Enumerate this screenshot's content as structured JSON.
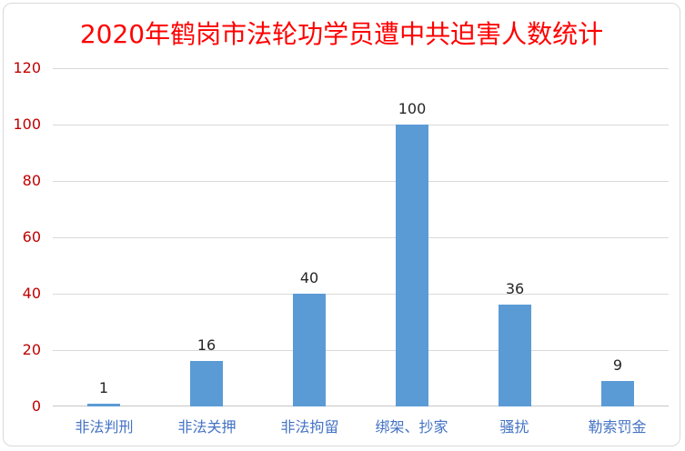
{
  "chart_data": {
    "type": "bar",
    "title": "2020年鹤岗市法轮功学员遭中共迫害人数统计",
    "categories": [
      "非法判刑",
      "非法关押",
      "非法拘留",
      "绑架、抄家",
      "骚扰",
      "勒索罚金"
    ],
    "values": [
      1,
      16,
      40,
      100,
      36,
      9
    ],
    "ylim": [
      0,
      120
    ],
    "yticks": [
      0,
      20,
      40,
      60,
      80,
      100,
      120
    ],
    "grid": true,
    "legend": "none",
    "colors": {
      "bar": "#5B9BD5",
      "title": "#FF0000",
      "ytick_labels": "#C00000",
      "category_labels": "#4472C4",
      "value_labels": "#262626",
      "gridline": "#D9D9D9",
      "axis_line": "#C6C6C6",
      "chart_border": "#D9D9D9"
    }
  }
}
